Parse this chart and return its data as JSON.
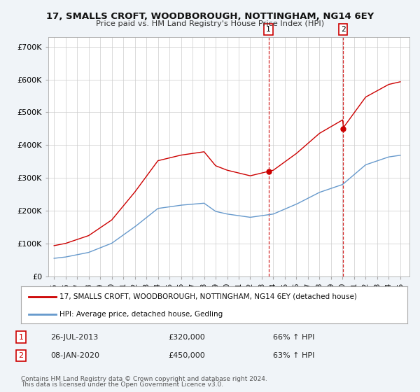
{
  "title_line1": "17, SMALLS CROFT, WOODBOROUGH, NOTTINGHAM, NG14 6EY",
  "title_line2": "Price paid vs. HM Land Registry's House Price Index (HPI)",
  "ylim": [
    0,
    730000
  ],
  "yticks": [
    0,
    100000,
    200000,
    300000,
    400000,
    500000,
    600000,
    700000
  ],
  "ytick_labels": [
    "£0",
    "£100K",
    "£200K",
    "£300K",
    "£400K",
    "£500K",
    "£600K",
    "£700K"
  ],
  "legend_label1": "17, SMALLS CROFT, WOODBOROUGH, NOTTINGHAM, NG14 6EY (detached house)",
  "legend_label2": "HPI: Average price, detached house, Gedling",
  "sale1_label": "1",
  "sale1_date": "26-JUL-2013",
  "sale1_price": "£320,000",
  "sale1_hpi": "66% ↑ HPI",
  "sale1_x": 2013.58,
  "sale1_y": 320000,
  "sale2_label": "2",
  "sale2_date": "08-JAN-2020",
  "sale2_price": "£450,000",
  "sale2_hpi": "63% ↑ HPI",
  "sale2_x": 2020.04,
  "sale2_y": 450000,
  "footnote1": "Contains HM Land Registry data © Crown copyright and database right 2024.",
  "footnote2": "This data is licensed under the Open Government Licence v3.0.",
  "line1_color": "#cc0000",
  "line2_color": "#6699cc",
  "vline_color": "#cc0000",
  "background_color": "#f0f4f8",
  "plot_bg_color": "#ffffff",
  "grid_color": "#cccccc",
  "xlim_left": 1994.5,
  "xlim_right": 2025.8
}
